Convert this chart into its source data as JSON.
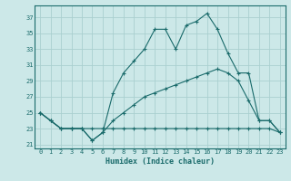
{
  "xlabel": "Humidex (Indice chaleur)",
  "bg_color": "#cce8e8",
  "grid_color": "#aad0d0",
  "line_color": "#1a6b6b",
  "xlim": [
    -0.5,
    23.5
  ],
  "ylim": [
    20.5,
    38.5
  ],
  "xticks": [
    0,
    1,
    2,
    3,
    4,
    5,
    6,
    7,
    8,
    9,
    10,
    11,
    12,
    13,
    14,
    15,
    16,
    17,
    18,
    19,
    20,
    21,
    22,
    23
  ],
  "yticks": [
    21,
    23,
    25,
    27,
    29,
    31,
    33,
    35,
    37
  ],
  "line1_x": [
    0,
    1,
    2,
    3,
    4,
    5,
    6,
    7,
    8,
    9,
    10,
    11,
    12,
    13,
    14,
    15,
    16,
    17,
    18,
    19,
    20,
    21,
    22,
    23
  ],
  "line1_y": [
    25,
    24,
    23,
    23,
    23,
    21.5,
    22.5,
    27.5,
    30,
    31.5,
    33,
    35.5,
    35.5,
    33,
    36,
    36.5,
    37.5,
    35.5,
    32.5,
    30,
    30,
    24,
    24,
    22.5
  ],
  "line2_x": [
    0,
    1,
    2,
    3,
    4,
    5,
    6,
    7,
    8,
    9,
    10,
    11,
    12,
    13,
    14,
    15,
    16,
    17,
    18,
    19,
    20,
    21,
    22,
    23
  ],
  "line2_y": [
    25,
    24,
    23,
    23,
    23,
    21.5,
    22.5,
    24,
    25,
    26,
    27,
    27.5,
    28,
    28.5,
    29,
    29.5,
    30,
    30.5,
    30,
    29,
    26.5,
    24,
    24,
    22.5
  ],
  "line3_x": [
    0,
    1,
    2,
    3,
    4,
    5,
    6,
    7,
    8,
    9,
    10,
    11,
    12,
    13,
    14,
    15,
    16,
    17,
    18,
    19,
    20,
    21,
    22,
    23
  ],
  "line3_y": [
    25,
    24,
    23,
    23,
    23,
    23,
    23,
    23,
    23,
    23,
    23,
    23,
    23,
    23,
    23,
    23,
    23,
    23,
    23,
    23,
    23,
    23,
    23,
    22.5
  ]
}
